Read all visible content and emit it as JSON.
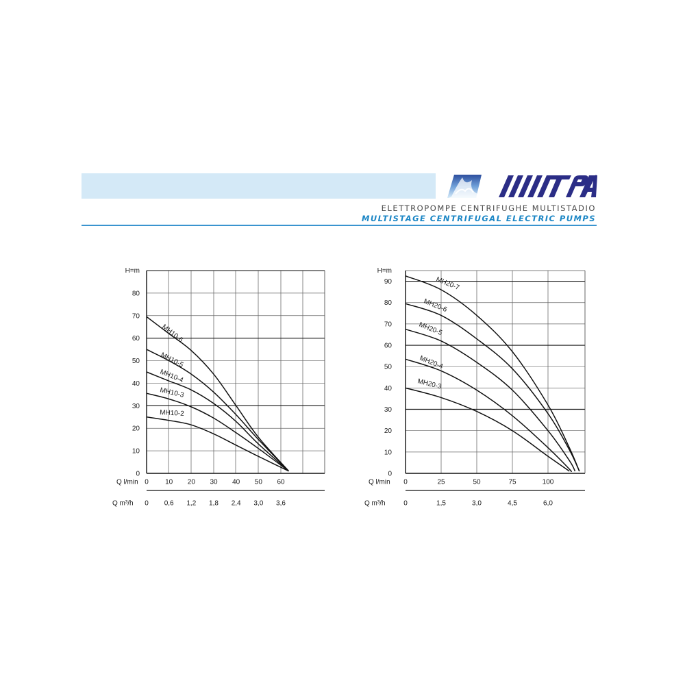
{
  "header": {
    "subtitle_it": "ELETTROPOMPE CENTRIFUGHE MULTISTADIO",
    "subtitle_en": "MULTISTAGE CENTRIFUGAL ELECTRIC PUMPS",
    "brand_logo_text": "MATRA",
    "band_color": "#d4e9f7",
    "accent_color": "#1b86c5",
    "brand_color": "#2b2d86"
  },
  "chart_data": [
    {
      "type": "line",
      "ylabel": "H=m",
      "xlabel": "Q l/min",
      "x2label": "Q m³/h",
      "ylim": [
        0,
        90
      ],
      "xlim": [
        0,
        70
      ],
      "yticks": [
        "0",
        "10",
        "20",
        "30",
        "40",
        "50",
        "60",
        "70",
        "80"
      ],
      "xticks": [
        {
          "v": 0,
          "label": "0"
        },
        {
          "v": 10,
          "label": "10"
        },
        {
          "v": 20,
          "label": "20"
        },
        {
          "v": 30,
          "label": "30"
        },
        {
          "v": 40,
          "label": "40"
        },
        {
          "v": 50,
          "label": "50"
        },
        {
          "v": 60,
          "label": "60"
        }
      ],
      "x2ticks": [
        {
          "v": 0,
          "label": "0"
        },
        {
          "v": 10,
          "label": "0,6"
        },
        {
          "v": 20,
          "label": "1,2"
        },
        {
          "v": 30,
          "label": "1,8"
        },
        {
          "v": 40,
          "label": "2,4"
        },
        {
          "v": 50,
          "label": "3,0"
        },
        {
          "v": 60,
          "label": "3,6"
        }
      ],
      "grid": true,
      "series": [
        {
          "name": "MH10-6",
          "points": [
            [
              0,
              69.5
            ],
            [
              10,
              62
            ],
            [
              20,
              54.5
            ],
            [
              30,
              44
            ],
            [
              40,
              30
            ],
            [
              50,
              16
            ],
            [
              63.5,
              1
            ]
          ]
        },
        {
          "name": "MH10-5",
          "points": [
            [
              0,
              55
            ],
            [
              10,
              50
            ],
            [
              20,
              44
            ],
            [
              30,
              36
            ],
            [
              40,
              26
            ],
            [
              50,
              15
            ],
            [
              63.5,
              1
            ]
          ]
        },
        {
          "name": "MH10-4",
          "points": [
            [
              0,
              45
            ],
            [
              10,
              41
            ],
            [
              20,
              37
            ],
            [
              30,
              31
            ],
            [
              40,
              23
            ],
            [
              50,
              13
            ],
            [
              63.5,
              1
            ]
          ]
        },
        {
          "name": "MH10-3",
          "points": [
            [
              0,
              35.5
            ],
            [
              10,
              33
            ],
            [
              20,
              29.5
            ],
            [
              30,
              24.5
            ],
            [
              40,
              18
            ],
            [
              50,
              11
            ],
            [
              63.5,
              1
            ]
          ]
        },
        {
          "name": "MH10-2",
          "points": [
            [
              0,
              25
            ],
            [
              10,
              23.5
            ],
            [
              20,
              21.5
            ],
            [
              30,
              17.5
            ],
            [
              40,
              12.5
            ],
            [
              50,
              7.5
            ],
            [
              63.5,
              1
            ]
          ]
        }
      ]
    },
    {
      "type": "line",
      "ylabel": "H=m",
      "xlabel": "Q l/min",
      "x2label": "Q m³/h",
      "ylim": [
        0,
        95
      ],
      "xlim": [
        0,
        125
      ],
      "yticks": [
        "0",
        "10",
        "20",
        "30",
        "40",
        "50",
        "60",
        "70",
        "80",
        "90"
      ],
      "xticks": [
        {
          "v": 0,
          "label": "0"
        },
        {
          "v": 25,
          "label": "25"
        },
        {
          "v": 50,
          "label": "50"
        },
        {
          "v": 75,
          "label": "75"
        },
        {
          "v": 100,
          "label": "100"
        }
      ],
      "x2ticks": [
        {
          "v": 0,
          "label": "0"
        },
        {
          "v": 25,
          "label": "1,5"
        },
        {
          "v": 50,
          "label": "3,0"
        },
        {
          "v": 75,
          "label": "4,5"
        },
        {
          "v": 100,
          "label": "6,0"
        }
      ],
      "grid": true,
      "series": [
        {
          "name": "MH20-7",
          "points": [
            [
              0,
              92.5
            ],
            [
              25,
              86
            ],
            [
              50,
              74
            ],
            [
              75,
              57
            ],
            [
              100,
              32
            ],
            [
              115,
              12
            ],
            [
              122,
              1
            ]
          ]
        },
        {
          "name": "MH20-6",
          "points": [
            [
              0,
              79.5
            ],
            [
              25,
              74
            ],
            [
              50,
              63
            ],
            [
              75,
              49
            ],
            [
              100,
              28
            ],
            [
              115,
              11
            ],
            [
              122,
              1
            ]
          ]
        },
        {
          "name": "MH20-5",
          "points": [
            [
              0,
              67.5
            ],
            [
              25,
              62
            ],
            [
              50,
              52
            ],
            [
              75,
              39
            ],
            [
              100,
              20
            ],
            [
              115,
              6
            ],
            [
              119,
              1
            ]
          ]
        },
        {
          "name": "MH20-4",
          "points": [
            [
              0,
              53.5
            ],
            [
              25,
              48
            ],
            [
              50,
              39
            ],
            [
              75,
              27
            ],
            [
              100,
              12
            ],
            [
              115,
              2
            ],
            [
              116,
              1
            ]
          ]
        },
        {
          "name": "MH20-3",
          "points": [
            [
              0,
              40
            ],
            [
              25,
              35.5
            ],
            [
              50,
              29
            ],
            [
              75,
              20
            ],
            [
              100,
              8
            ],
            [
              115,
              1
            ]
          ]
        }
      ]
    }
  ]
}
